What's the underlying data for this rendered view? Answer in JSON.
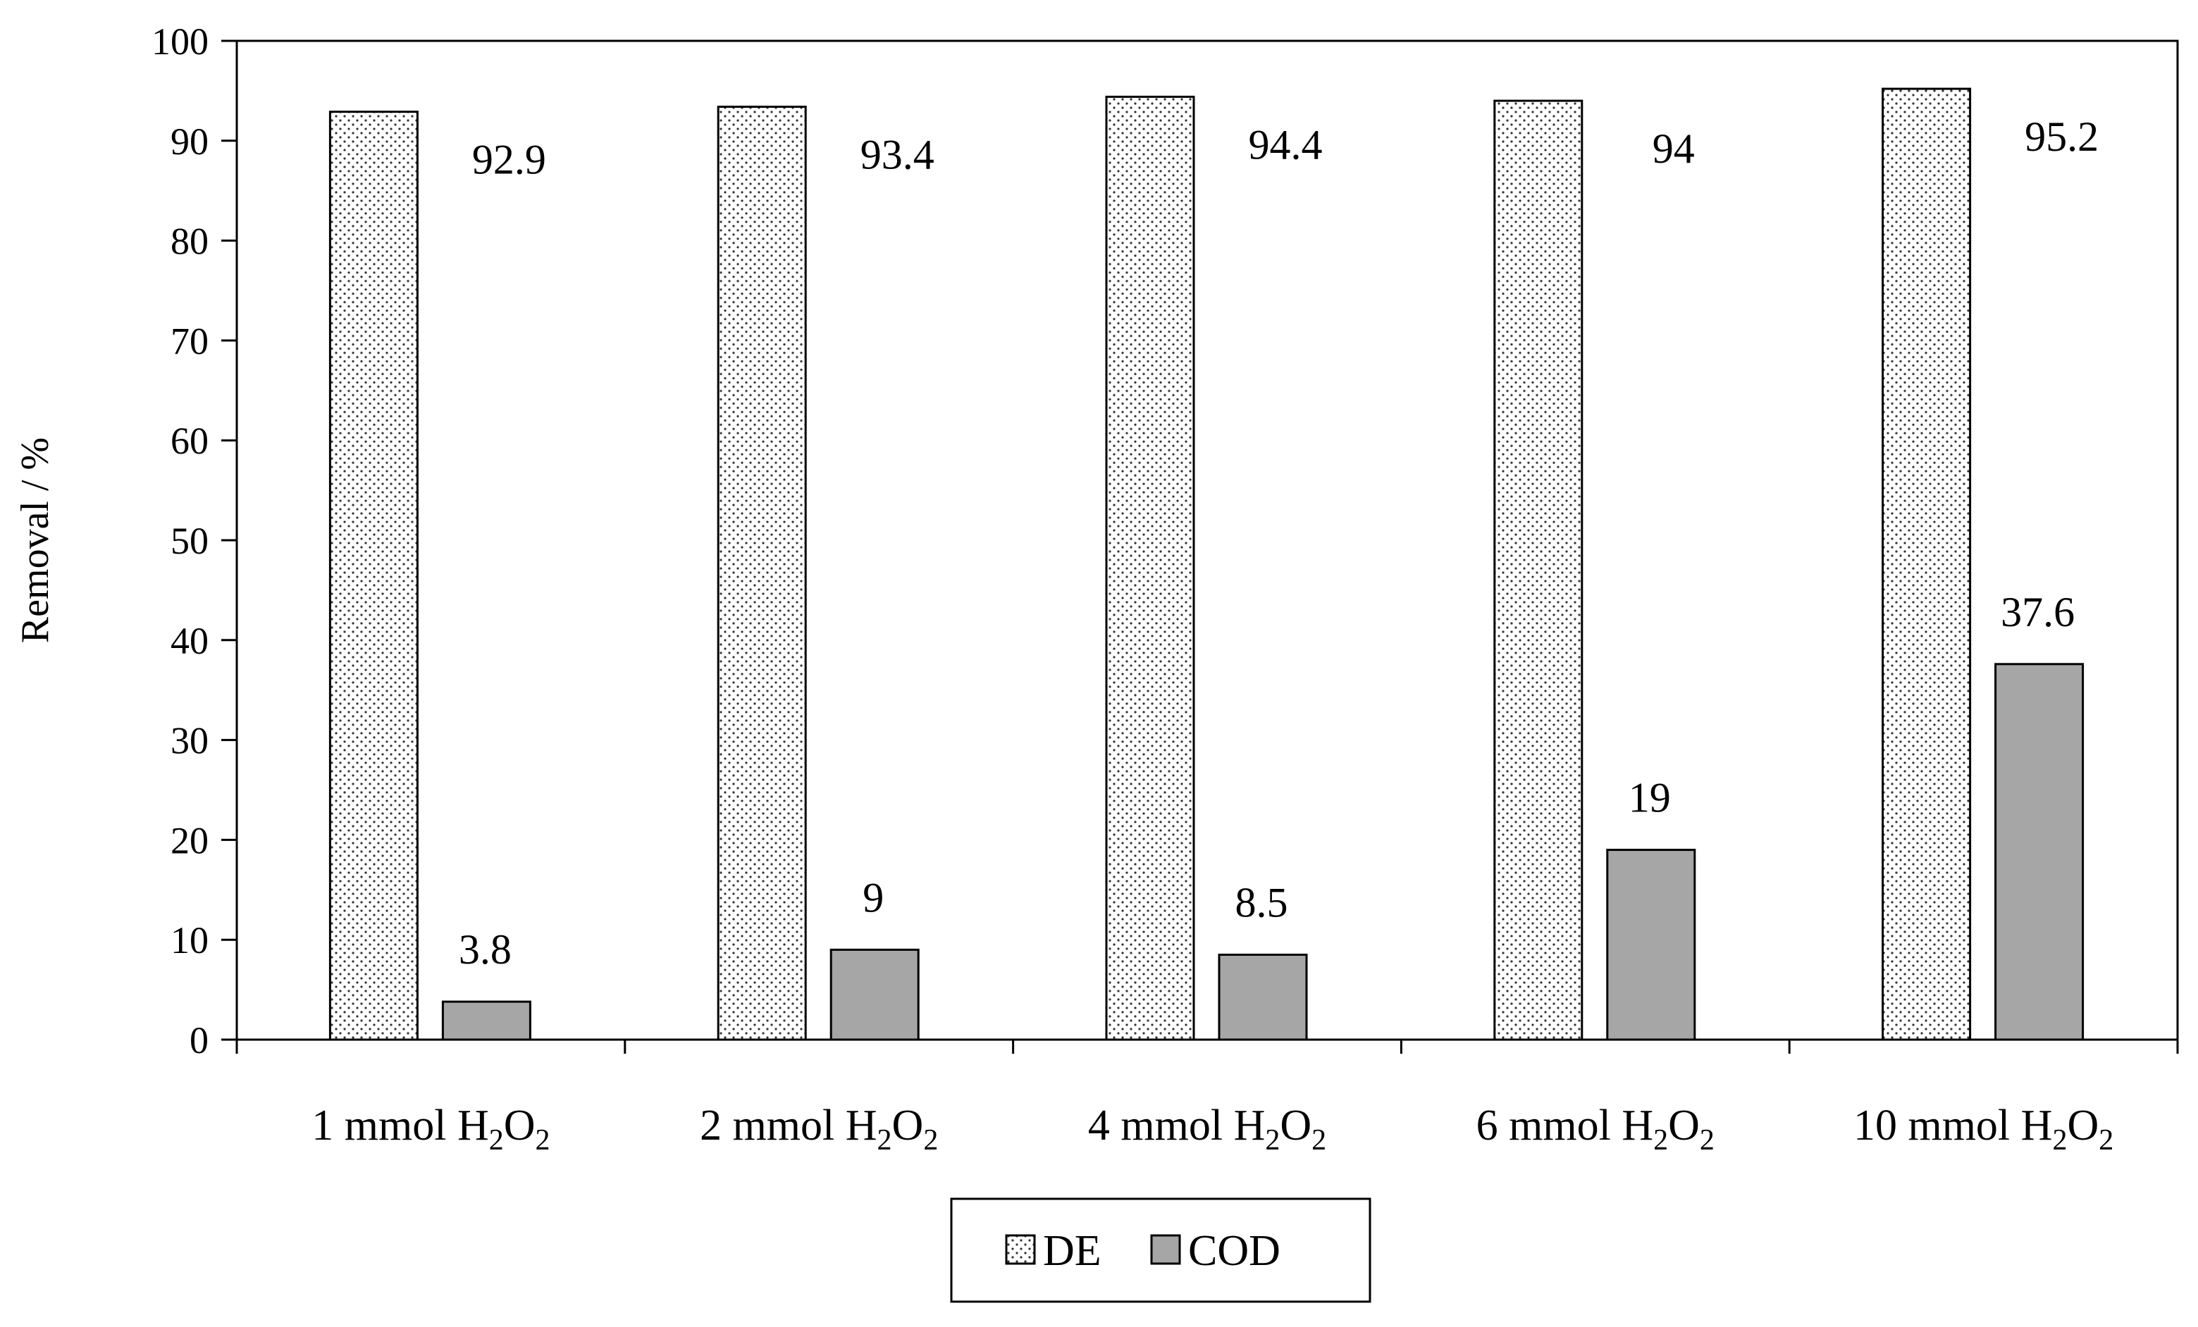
{
  "chart_data": {
    "type": "bar",
    "categories": [
      {
        "prefix": "1 mmol",
        "formula": [
          "H",
          "2",
          "O",
          "2"
        ]
      },
      {
        "prefix": "2 mmol",
        "formula": [
          "H",
          "2",
          "O",
          "2"
        ]
      },
      {
        "prefix": "4 mmol",
        "formula": [
          "H",
          "2",
          "O",
          "2"
        ]
      },
      {
        "prefix": "6 mmol",
        "formula": [
          "H",
          "2",
          "O",
          "2"
        ]
      },
      {
        "prefix": "10 mmol",
        "formula": [
          "H",
          "2",
          "O",
          "2"
        ]
      }
    ],
    "series": [
      {
        "name": "DE",
        "values": [
          92.9,
          93.4,
          94.4,
          94,
          95.2
        ],
        "labels": [
          "92.9",
          "93.4",
          "94.4",
          "94",
          "95.2"
        ],
        "fill": "dotted",
        "color": "#ffffff"
      },
      {
        "name": "COD",
        "values": [
          3.8,
          9,
          8.5,
          19,
          37.6
        ],
        "labels": [
          "3.8",
          "9",
          "8.5",
          "19",
          "37.6"
        ],
        "fill": "solid",
        "color": "#a6a6a6"
      }
    ],
    "ylabel": "Removal / %",
    "xlabel": "",
    "ylim": [
      0,
      100
    ],
    "yticks": [
      0,
      10,
      20,
      30,
      40,
      50,
      60,
      70,
      80,
      90,
      100
    ],
    "grid": false,
    "legend": "bottom-center"
  }
}
